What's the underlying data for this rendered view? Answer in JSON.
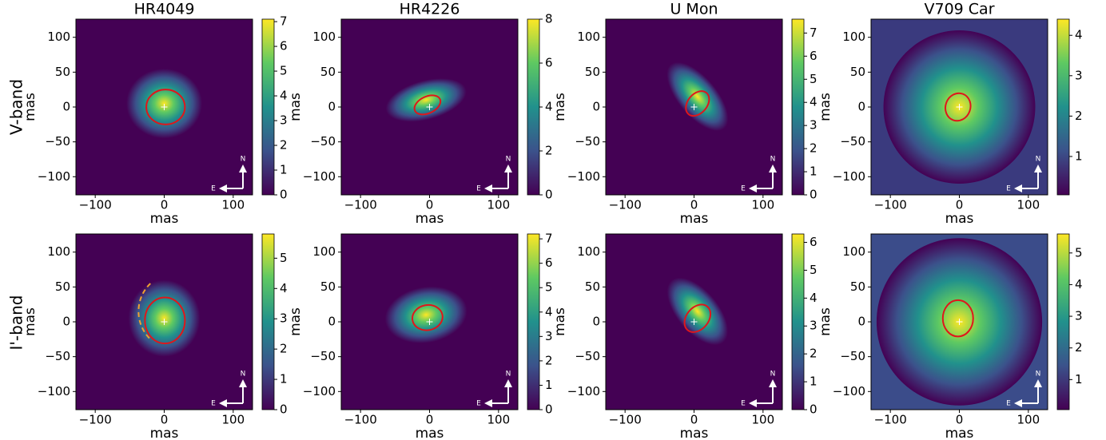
{
  "rows": [
    "V-band",
    "I'-band"
  ],
  "compass": {
    "north": "N",
    "east": "E"
  },
  "chart_data": [
    {
      "type": "image",
      "title": "HR4049",
      "xlabel": "mas",
      "ylabel": "mas",
      "colormap": "viridis",
      "xlim": [
        -128,
        128
      ],
      "ylim": [
        -126,
        126
      ],
      "xticks": [
        {
          "value": -100,
          "label": "−100"
        },
        0,
        100
      ],
      "yticks": [
        {
          "value": -100,
          "label": "−100"
        },
        {
          "value": -50,
          "label": "−50"
        },
        0,
        50,
        100
      ],
      "clim": [
        0,
        7.1
      ],
      "cticks": [
        0,
        1,
        2,
        3,
        4,
        5,
        6,
        7
      ]
    },
    {
      "type": "image",
      "title": "HR4226",
      "xlabel": "mas",
      "ylabel": "mas",
      "colormap": "viridis",
      "xlim": [
        -128,
        128
      ],
      "ylim": [
        -126,
        126
      ],
      "xticks": [
        {
          "value": -100,
          "label": "−100"
        },
        0,
        100
      ],
      "yticks": [
        {
          "value": -100,
          "label": "−100"
        },
        {
          "value": -50,
          "label": "−50"
        },
        0,
        50,
        100
      ],
      "clim": [
        0,
        8
      ],
      "cticks": [
        0,
        2,
        4,
        6,
        8
      ]
    },
    {
      "type": "image",
      "title": "U Mon",
      "xlabel": "mas",
      "ylabel": "mas",
      "colormap": "viridis",
      "xlim": [
        -128,
        128
      ],
      "ylim": [
        -126,
        126
      ],
      "xticks": [
        {
          "value": -100,
          "label": "−100"
        },
        0,
        100
      ],
      "yticks": [
        {
          "value": -100,
          "label": "−100"
        },
        {
          "value": -50,
          "label": "−50"
        },
        0,
        50,
        100
      ],
      "clim": [
        0,
        7.6
      ],
      "cticks": [
        0,
        1,
        2,
        3,
        4,
        5,
        6,
        7
      ]
    },
    {
      "type": "image",
      "title": "V709 Car",
      "xlabel": "mas",
      "ylabel": "mas",
      "colormap": "viridis",
      "xlim": [
        -128,
        128
      ],
      "ylim": [
        -126,
        126
      ],
      "xticks": [
        {
          "value": -100,
          "label": "−100"
        },
        0,
        100
      ],
      "yticks": [
        {
          "value": -100,
          "label": "−100"
        },
        {
          "value": -50,
          "label": "−50"
        },
        0,
        50,
        100
      ],
      "clim": [
        0.05,
        4.4
      ],
      "cticks": [
        1,
        2,
        3,
        4
      ]
    },
    {
      "type": "image",
      "xlabel": "mas",
      "ylabel": "mas",
      "colormap": "viridis",
      "xlim": [
        -128,
        128
      ],
      "ylim": [
        -126,
        126
      ],
      "xticks": [
        {
          "value": -100,
          "label": "−100"
        },
        0,
        100
      ],
      "yticks": [
        {
          "value": -100,
          "label": "−100"
        },
        {
          "value": -50,
          "label": "−50"
        },
        0,
        50,
        100
      ],
      "clim": [
        0,
        5.8
      ],
      "cticks": [
        0,
        1,
        2,
        3,
        4,
        5
      ]
    },
    {
      "type": "image",
      "xlabel": "mas",
      "ylabel": "mas",
      "colormap": "viridis",
      "xlim": [
        -128,
        128
      ],
      "ylim": [
        -126,
        126
      ],
      "xticks": [
        {
          "value": -100,
          "label": "−100"
        },
        0,
        100
      ],
      "yticks": [
        {
          "value": -100,
          "label": "−100"
        },
        {
          "value": -50,
          "label": "−50"
        },
        0,
        50,
        100
      ],
      "clim": [
        0,
        7.2
      ],
      "cticks": [
        0,
        1,
        2,
        3,
        4,
        5,
        6,
        7
      ]
    },
    {
      "type": "image",
      "xlabel": "mas",
      "ylabel": "mas",
      "colormap": "viridis",
      "xlim": [
        -128,
        128
      ],
      "ylim": [
        -126,
        126
      ],
      "xticks": [
        {
          "value": -100,
          "label": "−100"
        },
        0,
        100
      ],
      "yticks": [
        {
          "value": -100,
          "label": "−100"
        },
        {
          "value": -50,
          "label": "−50"
        },
        0,
        50,
        100
      ],
      "clim": [
        0,
        6.3
      ],
      "cticks": [
        0,
        1,
        2,
        3,
        4,
        5,
        6
      ]
    },
    {
      "type": "image",
      "xlabel": "mas",
      "ylabel": "mas",
      "colormap": "viridis",
      "xlim": [
        -128,
        128
      ],
      "ylim": [
        -126,
        126
      ],
      "xticks": [
        {
          "value": -100,
          "label": "−100"
        },
        0,
        100
      ],
      "yticks": [
        {
          "value": -100,
          "label": "−100"
        },
        {
          "value": -50,
          "label": "−50"
        },
        0,
        50,
        100
      ],
      "clim": [
        0.05,
        5.6
      ],
      "cticks": [
        1,
        2,
        3,
        4,
        5
      ]
    }
  ]
}
